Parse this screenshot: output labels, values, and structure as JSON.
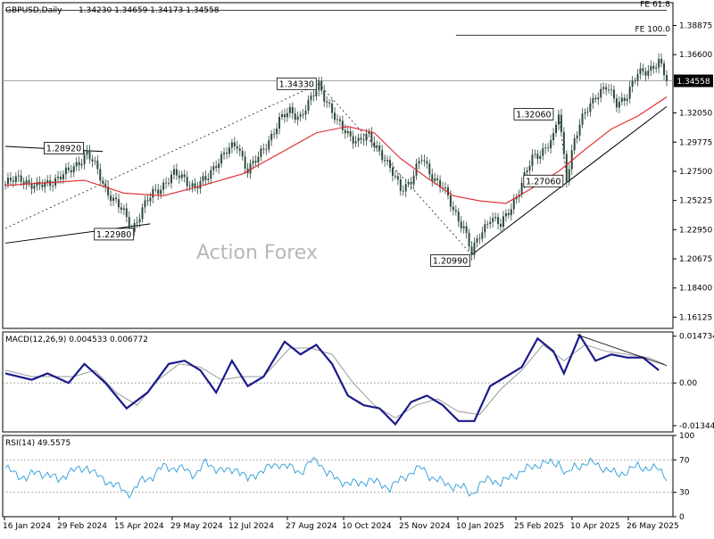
{
  "header": {
    "symbol": "GBPUSD,Daily",
    "ohlc": "1.34230 1.34659 1.34173 1.34558"
  },
  "watermark": "Action Forex",
  "colors": {
    "candles": "#2e4a3c",
    "sma": "#e0222a",
    "macd": "#1a1a8c",
    "macd_signal": "#9a9a9a",
    "rsi": "#2a9bd8",
    "trendlines": "#000000"
  },
  "chart_data": [
    {
      "type": "line",
      "title": "GBPUSD,Daily",
      "ylim": [
        1.1525,
        1.4065
      ],
      "y_ticks": [
        "1.38875",
        "1.36600",
        "1.34558",
        "1.32050",
        "1.29775",
        "1.27500",
        "1.25225",
        "1.22950",
        "1.20675",
        "1.18400",
        "1.16125"
      ],
      "current_price": "1.34558",
      "x_labels": [
        "16 Jan 2024",
        "29 Feb 2024",
        "15 Apr 2024",
        "29 May 2024",
        "12 Jul 2024",
        "27 Aug 2024",
        "10 Oct 2024",
        "25 Nov 2024",
        "10 Jan 2025",
        "25 Feb 2025",
        "10 Apr 2025",
        "26 May 2025"
      ],
      "price_path": [
        [
          0,
          1.265
        ],
        [
          6,
          1.27
        ],
        [
          12,
          1.262
        ],
        [
          18,
          1.268
        ],
        [
          24,
          1.274
        ],
        [
          28,
          1.283
        ],
        [
          31,
          1.2892
        ],
        [
          35,
          1.275
        ],
        [
          38,
          1.262
        ],
        [
          42,
          1.25
        ],
        [
          45,
          1.242
        ],
        [
          48,
          1.2298
        ],
        [
          52,
          1.245
        ],
        [
          56,
          1.258
        ],
        [
          60,
          1.265
        ],
        [
          64,
          1.272
        ],
        [
          68,
          1.27
        ],
        [
          72,
          1.262
        ],
        [
          76,
          1.268
        ],
        [
          80,
          1.282
        ],
        [
          84,
          1.29
        ],
        [
          88,
          1.296
        ],
        [
          92,
          1.276
        ],
        [
          96,
          1.285
        ],
        [
          100,
          1.3
        ],
        [
          104,
          1.314
        ],
        [
          108,
          1.322
        ],
        [
          112,
          1.318
        ],
        [
          116,
          1.33
        ],
        [
          119,
          1.3433
        ],
        [
          122,
          1.33
        ],
        [
          126,
          1.312
        ],
        [
          130,
          1.305
        ],
        [
          134,
          1.298
        ],
        [
          138,
          1.302
        ],
        [
          142,
          1.292
        ],
        [
          146,
          1.276
        ],
        [
          150,
          1.262
        ],
        [
          154,
          1.268
        ],
        [
          158,
          1.285
        ],
        [
          162,
          1.272
        ],
        [
          166,
          1.262
        ],
        [
          170,
          1.245
        ],
        [
          174,
          1.232
        ],
        [
          177,
          1.2099
        ],
        [
          180,
          1.225
        ],
        [
          184,
          1.24
        ],
        [
          188,
          1.232
        ],
        [
          192,
          1.248
        ],
        [
          196,
          1.265
        ],
        [
          200,
          1.285
        ],
        [
          204,
          1.292
        ],
        [
          208,
          1.3
        ],
        [
          210,
          1.3206
        ],
        [
          213,
          1.2706
        ],
        [
          216,
          1.3
        ],
        [
          220,
          1.32
        ],
        [
          224,
          1.335
        ],
        [
          228,
          1.34
        ],
        [
          232,
          1.328
        ],
        [
          236,
          1.335
        ],
        [
          240,
          1.35
        ],
        [
          244,
          1.355
        ],
        [
          248,
          1.36
        ],
        [
          251,
          1.34558
        ]
      ],
      "sma_path": [
        [
          0,
          1.264
        ],
        [
          15,
          1.266
        ],
        [
          30,
          1.268
        ],
        [
          45,
          1.258
        ],
        [
          60,
          1.256
        ],
        [
          75,
          1.264
        ],
        [
          90,
          1.273
        ],
        [
          105,
          1.29
        ],
        [
          118,
          1.305
        ],
        [
          130,
          1.31
        ],
        [
          140,
          1.305
        ],
        [
          150,
          1.285
        ],
        [
          160,
          1.27
        ],
        [
          170,
          1.256
        ],
        [
          180,
          1.252
        ],
        [
          190,
          1.25
        ],
        [
          200,
          1.262
        ],
        [
          210,
          1.275
        ],
        [
          220,
          1.292
        ],
        [
          230,
          1.308
        ],
        [
          240,
          1.318
        ],
        [
          251,
          1.333
        ]
      ],
      "annotations": [
        {
          "label": "1.28920",
          "x": 31,
          "y": 1.2892
        },
        {
          "label": "1.22980",
          "x": 48,
          "y": 1.2298
        },
        {
          "label": "1.34330",
          "x": 119,
          "y": 1.3433
        },
        {
          "label": "1.20990",
          "x": 177,
          "y": 1.2099
        },
        {
          "label": "1.32060",
          "x": 210,
          "y": 1.3206
        },
        {
          "label": "1.27060",
          "x": 213,
          "y": 1.2706
        }
      ],
      "fibonacci": [
        {
          "label": "FE 61.8",
          "x_start": 0,
          "x_end": 251,
          "y": 1.4005
        },
        {
          "label": "FE 100.0",
          "x_start": 171,
          "x_end": 251,
          "y": 1.3812
        }
      ]
    },
    {
      "type": "line",
      "title": "MACD(12,26,9) 0.004533 0.006772",
      "ylim": [
        -0.01542,
        0.01606
      ],
      "y_ticks": [
        "0.014734",
        "0.00",
        "-0.013442"
      ],
      "series": [
        {
          "values": [
            [
              0,
              0.003
            ],
            [
              10,
              0.001
            ],
            [
              16,
              0.003
            ],
            [
              24,
              0.0
            ],
            [
              30,
              0.006
            ],
            [
              38,
              0.0
            ],
            [
              46,
              -0.008
            ],
            [
              54,
              -0.003
            ],
            [
              62,
              0.006
            ],
            [
              68,
              0.007
            ],
            [
              74,
              0.004
            ],
            [
              80,
              -0.003
            ],
            [
              86,
              0.007
            ],
            [
              92,
              -0.001
            ],
            [
              98,
              0.002
            ],
            [
              106,
              0.013
            ],
            [
              112,
              0.009
            ],
            [
              118,
              0.012
            ],
            [
              124,
              0.006
            ],
            [
              130,
              -0.004
            ],
            [
              136,
              -0.007
            ],
            [
              142,
              -0.008
            ],
            [
              148,
              -0.013
            ],
            [
              154,
              -0.006
            ],
            [
              160,
              -0.004
            ],
            [
              166,
              -0.007
            ],
            [
              172,
              -0.012
            ],
            [
              178,
              -0.012
            ],
            [
              184,
              -0.001
            ],
            [
              190,
              0.002
            ],
            [
              196,
              0.005
            ],
            [
              202,
              0.014
            ],
            [
              208,
              0.01
            ],
            [
              212,
              0.003
            ],
            [
              218,
              0.015
            ],
            [
              224,
              0.007
            ],
            [
              230,
              0.009
            ],
            [
              236,
              0.008
            ],
            [
              242,
              0.008
            ],
            [
              248,
              0.004
            ]
          ]
        },
        {
          "values": [
            [
              0,
              0.004
            ],
            [
              10,
              0.002
            ],
            [
              18,
              0.002
            ],
            [
              26,
              0.002
            ],
            [
              34,
              0.004
            ],
            [
              42,
              -0.003
            ],
            [
              50,
              -0.007
            ],
            [
              58,
              0.001
            ],
            [
              66,
              0.006
            ],
            [
              74,
              0.005
            ],
            [
              82,
              0.001
            ],
            [
              90,
              0.002
            ],
            [
              98,
              0.002
            ],
            [
              108,
              0.011
            ],
            [
              116,
              0.011
            ],
            [
              124,
              0.009
            ],
            [
              132,
              0.0
            ],
            [
              140,
              -0.007
            ],
            [
              148,
              -0.011
            ],
            [
              156,
              -0.007
            ],
            [
              164,
              -0.005
            ],
            [
              172,
              -0.009
            ],
            [
              180,
              -0.01
            ],
            [
              188,
              -0.002
            ],
            [
              196,
              0.004
            ],
            [
              204,
              0.012
            ],
            [
              212,
              0.007
            ],
            [
              220,
              0.012
            ],
            [
              228,
              0.01
            ],
            [
              236,
              0.009
            ],
            [
              244,
              0.008
            ],
            [
              250,
              0.006
            ]
          ]
        }
      ],
      "annotations": [
        {
          "label": "trendline",
          "x1": 217,
          "y1": 0.0152,
          "x2": 251,
          "y2": 0.0055
        }
      ]
    },
    {
      "type": "line",
      "title": "RSI(14) 49.5575",
      "ylim": [
        0,
        100
      ],
      "y_ticks": [
        "100",
        "70",
        "30",
        "0"
      ],
      "levels": [
        70,
        30
      ],
      "series": [
        {
          "values": [
            [
              0,
              60
            ],
            [
              4,
              52
            ],
            [
              8,
              48
            ],
            [
              12,
              55
            ],
            [
              16,
              52
            ],
            [
              20,
              45
            ],
            [
              24,
              55
            ],
            [
              28,
              58
            ],
            [
              31,
              62
            ],
            [
              34,
              52
            ],
            [
              38,
              45
            ],
            [
              42,
              38
            ],
            [
              46,
              30
            ],
            [
              48,
              30
            ],
            [
              52,
              45
            ],
            [
              56,
              50
            ],
            [
              60,
              62
            ],
            [
              64,
              60
            ],
            [
              68,
              58
            ],
            [
              72,
              52
            ],
            [
              76,
              66
            ],
            [
              80,
              60
            ],
            [
              84,
              55
            ],
            [
              88,
              60
            ],
            [
              92,
              45
            ],
            [
              96,
              55
            ],
            [
              100,
              60
            ],
            [
              104,
              66
            ],
            [
              108,
              60
            ],
            [
              112,
              55
            ],
            [
              116,
              68
            ],
            [
              119,
              68
            ],
            [
              122,
              55
            ],
            [
              126,
              45
            ],
            [
              130,
              42
            ],
            [
              134,
              40
            ],
            [
              138,
              46
            ],
            [
              142,
              40
            ],
            [
              146,
              36
            ],
            [
              150,
              45
            ],
            [
              154,
              55
            ],
            [
              158,
              60
            ],
            [
              162,
              48
            ],
            [
              166,
              42
            ],
            [
              170,
              38
            ],
            [
              174,
              35
            ],
            [
              177,
              28
            ],
            [
              180,
              38
            ],
            [
              184,
              48
            ],
            [
              188,
              40
            ],
            [
              192,
              50
            ],
            [
              196,
              55
            ],
            [
              200,
              62
            ],
            [
              204,
              66
            ],
            [
              208,
              65
            ],
            [
              210,
              68
            ],
            [
              213,
              50
            ],
            [
              216,
              62
            ],
            [
              220,
              65
            ],
            [
              224,
              66
            ],
            [
              228,
              58
            ],
            [
              232,
              52
            ],
            [
              236,
              56
            ],
            [
              240,
              62
            ],
            [
              244,
              60
            ],
            [
              248,
              58
            ],
            [
              251,
              49.5575
            ]
          ]
        }
      ]
    }
  ]
}
